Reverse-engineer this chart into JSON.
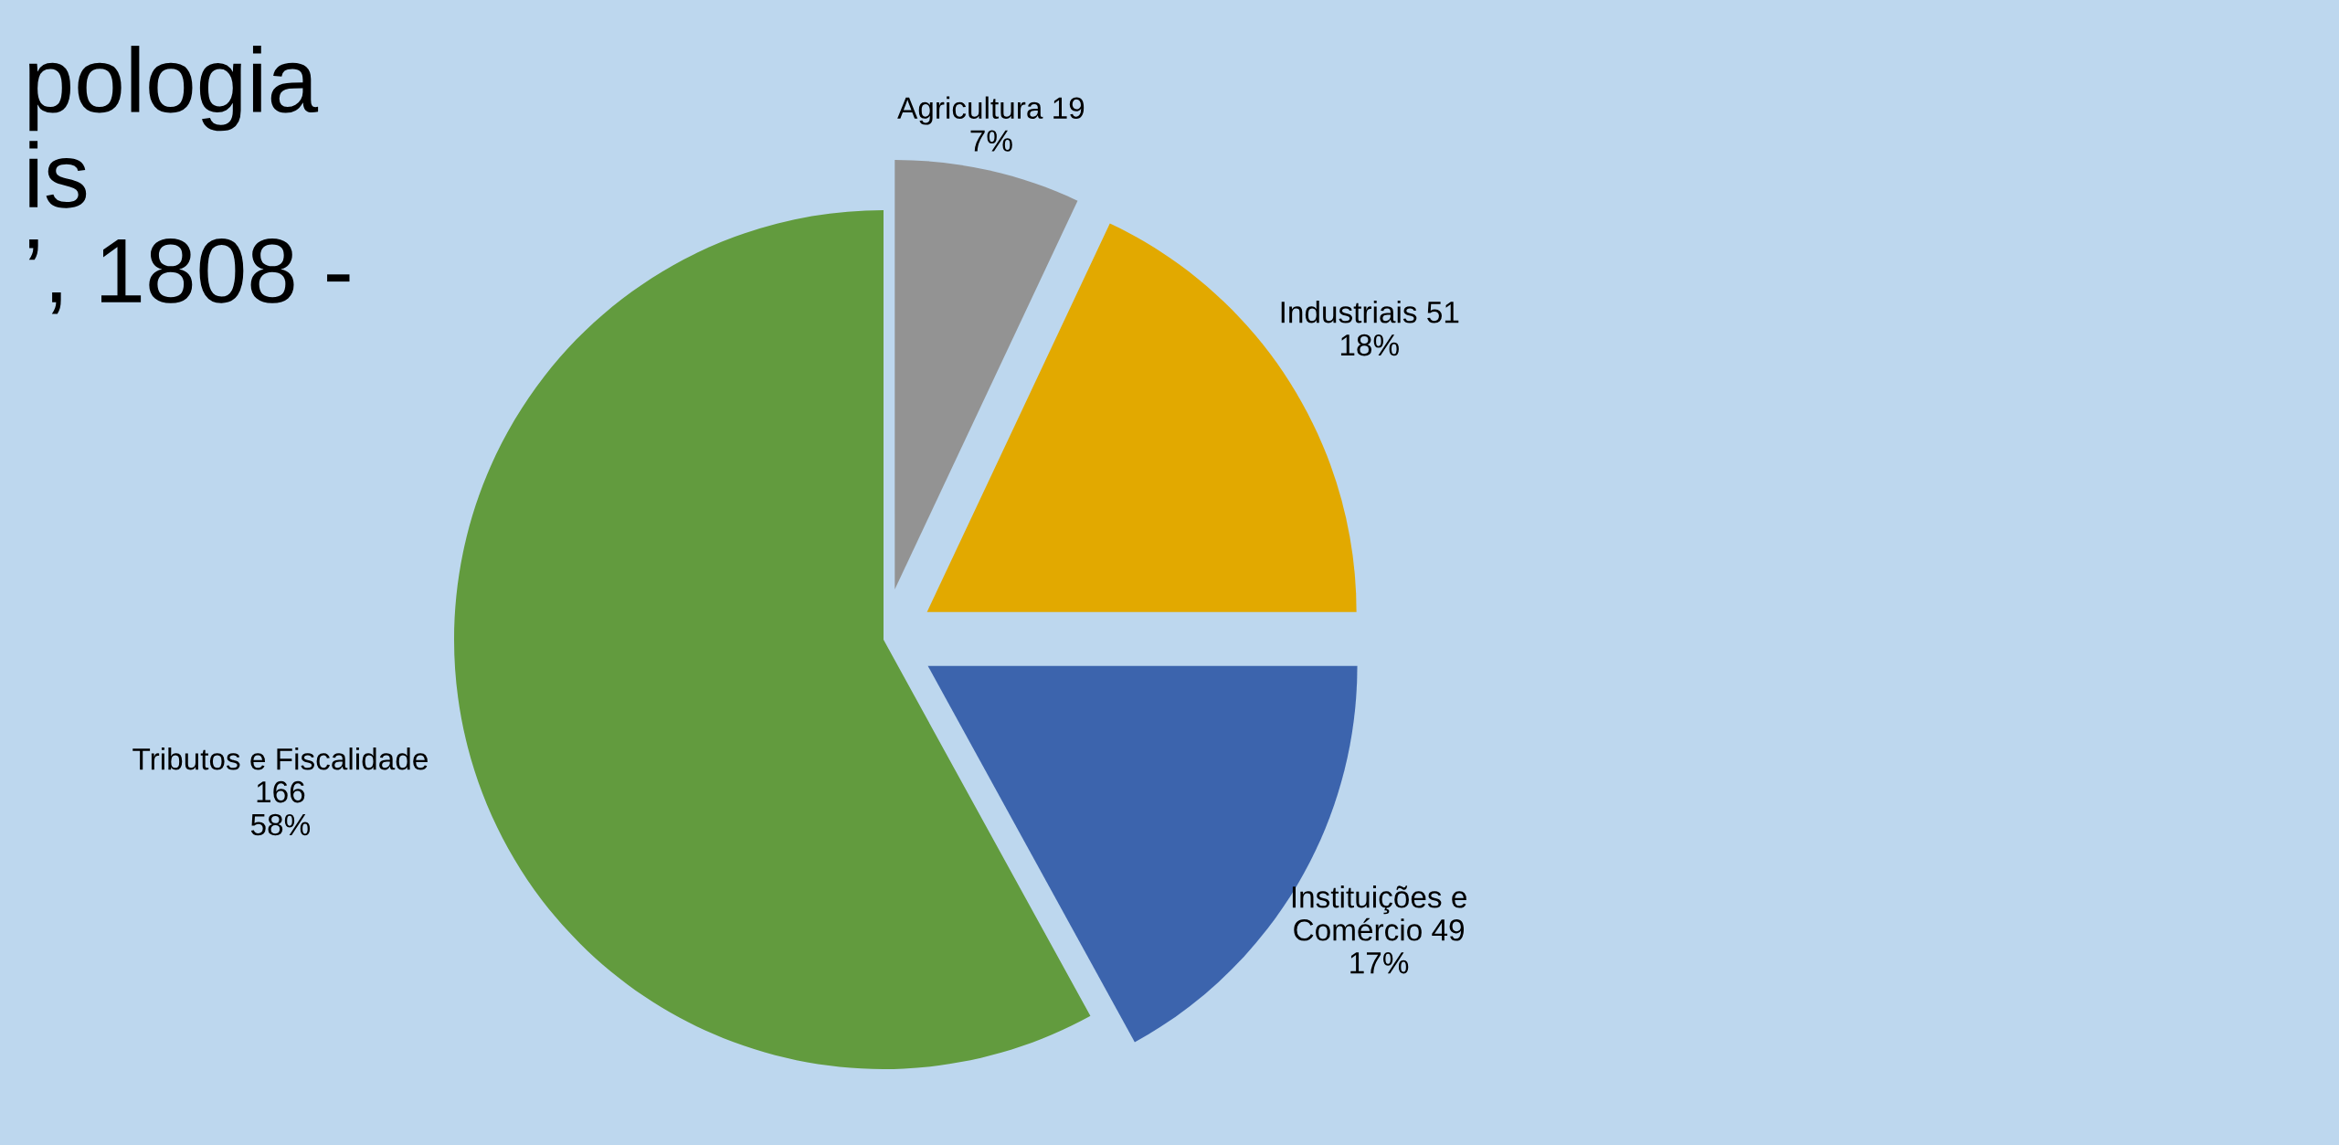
{
  "chart_data": {
    "type": "pie",
    "title": "pologia\nis\n’, 1808 -",
    "categories": [
      "Agricultura 19",
      "Industriais 51",
      "Instituições e Comércio 49",
      "Tributos e Fiscalidade 166"
    ],
    "values": [
      7,
      18,
      17,
      58
    ],
    "colors": [
      "#939393",
      "#e2a900",
      "#3c64ad",
      "#629b3e"
    ],
    "value_labels": [
      "7%",
      "18%",
      "17%",
      "58%"
    ],
    "data_labels": true
  }
}
